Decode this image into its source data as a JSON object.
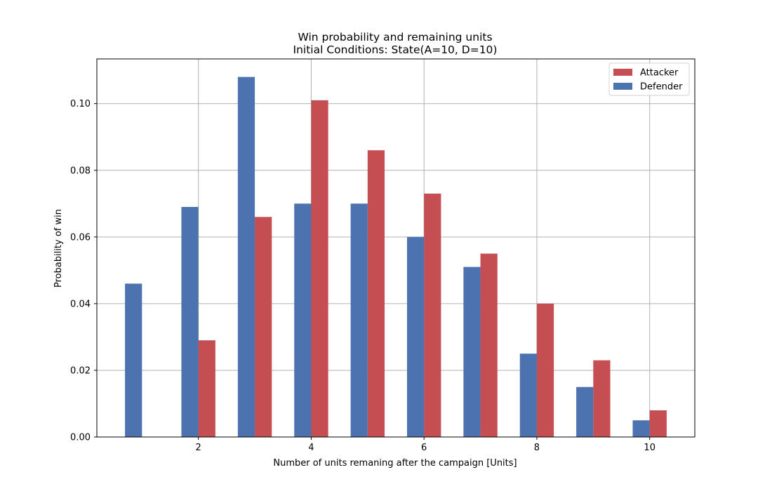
{
  "chart_data": {
    "type": "bar",
    "title": "Win probability and remaining units",
    "subtitle": "Initial Conditions: State(A=10, D=10)",
    "xlabel": "Number of units remaning after the campaign [Units]",
    "ylabel": "Probability of win",
    "x": [
      1,
      2,
      3,
      4,
      5,
      6,
      7,
      8,
      9,
      10
    ],
    "xticks": [
      2,
      4,
      6,
      8,
      10
    ],
    "yticks": [
      0.0,
      0.02,
      0.04,
      0.06,
      0.08,
      0.1
    ],
    "ytick_labels": [
      "0.00",
      "0.02",
      "0.04",
      "0.06",
      "0.08",
      "0.10"
    ],
    "xlim": [
      0.2,
      10.8
    ],
    "ylim": [
      0,
      0.1134
    ],
    "grid": true,
    "legend_position": "top-right",
    "series": [
      {
        "name": "Attacker",
        "color": "#c44e52",
        "offset": "right",
        "values": [
          0,
          0.029,
          0.066,
          0.101,
          0.086,
          0.073,
          0.055,
          0.04,
          0.023,
          0.008
        ]
      },
      {
        "name": "Defender",
        "color": "#4c72b0",
        "offset": "left",
        "values": [
          0.046,
          0.069,
          0.108,
          0.07,
          0.07,
          0.06,
          0.051,
          0.025,
          0.015,
          0.005
        ]
      }
    ]
  }
}
